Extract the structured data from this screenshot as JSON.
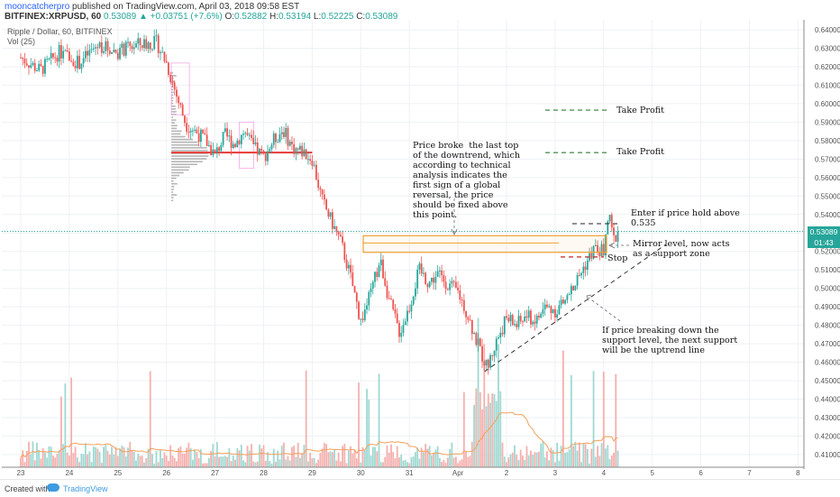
{
  "header": {
    "author": "mooncatcherpro",
    "published": "published on TradingView.com, April 03, 2018 09:58 EST",
    "symbol": "BITFINEX:XRPUSD, 60",
    "last": "0.53089",
    "change": "▲ +0.03751 (+7.6%)",
    "o_label": "O:",
    "o": "0.52882",
    "h_label": "H:",
    "h": "0.53194",
    "l_label": "L:",
    "l": "0.52225",
    "c_label": "C:",
    "c": "0.53089",
    "legend": "Ripple / Dollar, 60, BITFINEX",
    "volume_label": "Vol (25)"
  },
  "price_box": {
    "last": "0.53089",
    "countdown": "01:43"
  },
  "annotations": {
    "breakout": "Price broke  the last top\nof the downtrend, which\naccording to technical\nanalysis indicates the\nfirst sign of a global\nreversal, the price\nshould be fixed above\nthis point.",
    "take_profit_1": "Take Profit",
    "take_profit_2": "Take Profit",
    "enter": "Enter if price hold above\n0.535",
    "mirror": "Mirror level, now acts\nas a support zone",
    "stop": "Stop",
    "uptrend": "If price breaking down the\nsupport level, the next support\nwill be the uptrend line"
  },
  "footer": {
    "created": "Created with",
    "brand": "TradingView"
  },
  "colors": {
    "up": "#26a69a",
    "down": "#ef5350",
    "zone": "#f0a030",
    "volume_profile": "#9e9e9e",
    "vp_poc": "#e53935",
    "ma": "#f5a05a",
    "take_profit": "#2e7d32"
  },
  "chart_data": {
    "type": "candlestick",
    "y_ticks": [
      "0.64000",
      "0.63000",
      "0.62000",
      "0.61000",
      "0.60000",
      "0.59000",
      "0.58000",
      "0.57000",
      "0.56000",
      "0.55000",
      "0.54000",
      "0.53000",
      "0.52000",
      "0.51000",
      "0.50000",
      "0.49000",
      "0.48000",
      "0.47000",
      "0.46000",
      "0.45000",
      "0.44000",
      "0.43000",
      "0.42000",
      "0.41000"
    ],
    "x_ticks": [
      "23",
      "24",
      "25",
      "26",
      "27",
      "28",
      "29",
      "30",
      "31",
      "Apr",
      "2",
      "3",
      "4",
      "5",
      "6",
      "7",
      "8"
    ],
    "ylim": [
      0.405,
      0.645
    ],
    "close_path": [
      [
        23,
        0.625
      ],
      [
        23.4,
        0.618
      ],
      [
        23.8,
        0.628
      ],
      [
        24.2,
        0.622
      ],
      [
        24.6,
        0.632
      ],
      [
        25,
        0.628
      ],
      [
        25.4,
        0.632
      ],
      [
        25.8,
        0.633
      ],
      [
        26,
        0.622
      ],
      [
        26.2,
        0.605
      ],
      [
        26.4,
        0.589
      ],
      [
        26.6,
        0.585
      ],
      [
        26.8,
        0.58
      ],
      [
        27,
        0.572
      ],
      [
        27.2,
        0.583
      ],
      [
        27.4,
        0.578
      ],
      [
        27.6,
        0.585
      ],
      [
        27.8,
        0.576
      ],
      [
        28,
        0.571
      ],
      [
        28.2,
        0.58
      ],
      [
        28.4,
        0.586
      ],
      [
        28.6,
        0.576
      ],
      [
        28.8,
        0.574
      ],
      [
        29,
        0.57
      ],
      [
        29.2,
        0.548
      ],
      [
        29.4,
        0.536
      ],
      [
        29.6,
        0.524
      ],
      [
        29.8,
        0.505
      ],
      [
        30,
        0.482
      ],
      [
        30.2,
        0.497
      ],
      [
        30.4,
        0.515
      ],
      [
        30.6,
        0.492
      ],
      [
        30.8,
        0.476
      ],
      [
        31,
        0.49
      ],
      [
        31.2,
        0.51
      ],
      [
        31.4,
        0.503
      ],
      [
        31.6,
        0.508
      ],
      [
        31.8,
        0.502
      ],
      [
        32,
        0.498
      ],
      [
        32.2,
        0.486
      ],
      [
        32.4,
        0.47
      ],
      [
        32.6,
        0.457
      ],
      [
        32.8,
        0.472
      ],
      [
        33,
        0.484
      ],
      [
        33.2,
        0.48
      ],
      [
        33.4,
        0.485
      ],
      [
        33.6,
        0.482
      ],
      [
        33.8,
        0.49
      ],
      [
        34,
        0.488
      ],
      [
        34.2,
        0.493
      ],
      [
        34.4,
        0.502
      ],
      [
        34.6,
        0.512
      ],
      [
        34.8,
        0.521
      ],
      [
        35,
        0.52
      ],
      [
        35.1,
        0.54
      ],
      [
        35.2,
        0.526
      ],
      [
        35.3,
        0.531
      ]
    ],
    "levels": {
      "take_profit_1": 0.5965,
      "take_profit_2": 0.5735,
      "enter_above": 0.535,
      "mirror_zone": [
        0.5195,
        0.5285
      ],
      "stop": 0.517,
      "volume_profile_poc": 0.5735
    },
    "uptrend_line": [
      [
        32.55,
        0.455
      ],
      [
        35.35,
        0.513
      ]
    ],
    "volume_ma_label": "Vol (25)"
  }
}
